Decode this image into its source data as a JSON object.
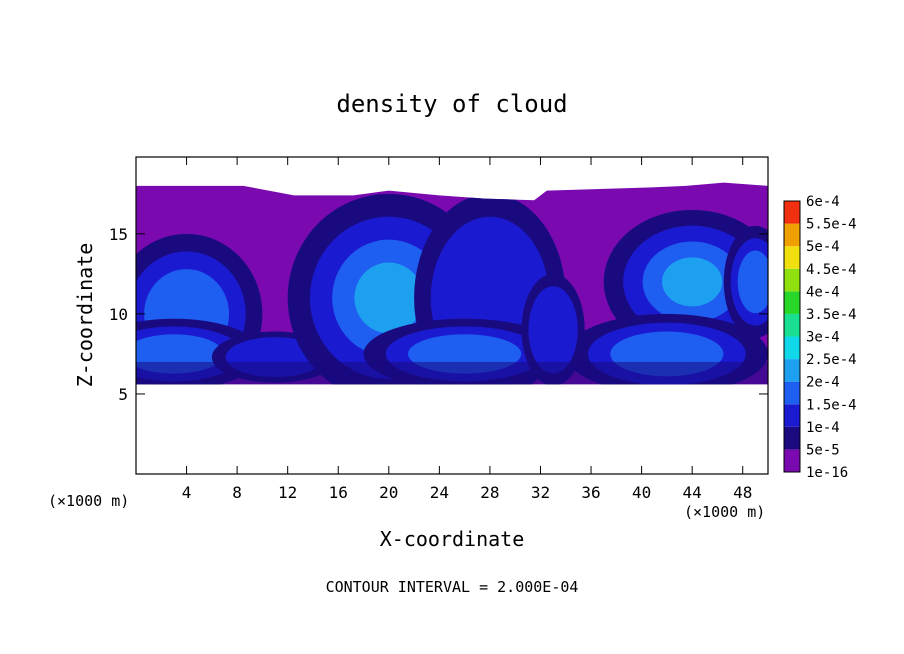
{
  "chart_data": {
    "type": "heatmap",
    "title": "density of cloud",
    "xlabel": "X-coordinate",
    "ylabel": "Z-coordinate",
    "x_unit_label": "(×1000 m)",
    "y_unit_label": "(×1000 m)",
    "footer": "CONTOUR INTERVAL = 2.000E-04",
    "xlim": [
      0,
      50
    ],
    "ylim": [
      0,
      19.8
    ],
    "x_ticks": [
      4,
      8,
      12,
      16,
      20,
      24,
      28,
      32,
      36,
      40,
      44,
      48
    ],
    "y_ticks": [
      5,
      10,
      15
    ],
    "colorbar": {
      "labels": [
        "1e-16",
        "5e-5",
        "1e-4",
        "1.5e-4",
        "2e-4",
        "2.5e-4",
        "3e-4",
        "3.5e-4",
        "4e-4",
        "4.5e-4",
        "5e-4",
        "5.5e-4",
        "6e-4"
      ],
      "colors": [
        "#7a0ab0",
        "#1a0a80",
        "#1a1ad0",
        "#1e5ef0",
        "#1ea0f0",
        "#10d8e8",
        "#18e090",
        "#28d828",
        "#90e010",
        "#f0e010",
        "#f0a000",
        "#f03010",
        "#f08080"
      ]
    },
    "cloud_layer": {
      "top_z": [
        18.0,
        18.0,
        18.0,
        17.4,
        17.4,
        17.7,
        17.4,
        17.2,
        17.1,
        17.7,
        17.9,
        18.0,
        18.2,
        18.0
      ],
      "top_x": [
        0,
        8,
        8.5,
        12.5,
        17.2,
        20,
        24,
        27.6,
        31.5,
        32.5,
        40.8,
        43.5,
        46.5,
        50
      ],
      "base_z_km": 5.6,
      "shading_levels": [
        "1e-16",
        "5e-5",
        "1e-4",
        "1.5e-4",
        "2e-4"
      ]
    }
  },
  "colors": {
    "background": "#ffffff",
    "axis": "#000000"
  }
}
